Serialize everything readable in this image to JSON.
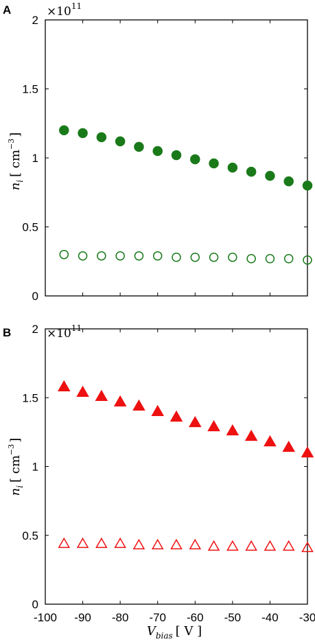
{
  "chart_data": [
    {
      "type": "scatter",
      "panel_label": "A",
      "multiplier_text": "×10",
      "multiplier_exp": "11",
      "ylabel_var": "n",
      "ylabel_sub": "i",
      "ylabel_unit": "[ cm",
      "ylabel_unit_exp": "−3",
      "ylabel_unit_close": "]",
      "xlim": [
        -100,
        -30
      ],
      "ylim": [
        0,
        2
      ],
      "yticks": [
        0,
        0.5,
        1,
        1.5,
        2
      ],
      "ytick_labels": [
        "0",
        "0.5",
        "1",
        "1.5",
        "2"
      ],
      "grid": false,
      "series": [
        {
          "marker": "circle",
          "filled": true,
          "color": "#1a7a1a",
          "x": [
            -95,
            -90,
            -85,
            -80,
            -75,
            -70,
            -65,
            -60,
            -55,
            -50,
            -45,
            -40,
            -35,
            -30
          ],
          "y": [
            1.2,
            1.18,
            1.15,
            1.12,
            1.08,
            1.05,
            1.02,
            0.99,
            0.96,
            0.93,
            0.9,
            0.87,
            0.83,
            0.8
          ]
        },
        {
          "marker": "circle",
          "filled": false,
          "color": "#1a7a1a",
          "x": [
            -95,
            -90,
            -85,
            -80,
            -75,
            -70,
            -65,
            -60,
            -55,
            -50,
            -45,
            -40,
            -35,
            -30
          ],
          "y": [
            0.3,
            0.29,
            0.29,
            0.29,
            0.29,
            0.29,
            0.28,
            0.28,
            0.28,
            0.28,
            0.27,
            0.27,
            0.27,
            0.26
          ]
        }
      ]
    },
    {
      "type": "scatter",
      "panel_label": "B",
      "multiplier_text": "×10",
      "multiplier_exp": "11",
      "ylabel_var": "n",
      "ylabel_sub": "i",
      "ylabel_unit": "[ cm",
      "ylabel_unit_exp": "−3",
      "ylabel_unit_close": "]",
      "xlim": [
        -100,
        -30
      ],
      "ylim": [
        0,
        2
      ],
      "yticks": [
        0,
        0.5,
        1,
        1.5,
        2
      ],
      "ytick_labels": [
        "0",
        "0.5",
        "1",
        "1.5",
        "2"
      ],
      "xticks": [
        -100,
        -90,
        -80,
        -70,
        -60,
        -50,
        -40,
        -30
      ],
      "xtick_labels": [
        "-100",
        "-90",
        "-80",
        "-70",
        "-60",
        "-50",
        "-40",
        "-30"
      ],
      "xlabel_var": "V",
      "xlabel_sub": "bias",
      "xlabel_unit": "[ V ]",
      "grid": false,
      "series": [
        {
          "marker": "triangle",
          "filled": true,
          "color": "#ee1111",
          "x": [
            -95,
            -90,
            -85,
            -80,
            -75,
            -70,
            -65,
            -60,
            -55,
            -50,
            -45,
            -40,
            -35,
            -30
          ],
          "y": [
            1.58,
            1.54,
            1.51,
            1.47,
            1.44,
            1.4,
            1.36,
            1.32,
            1.29,
            1.26,
            1.22,
            1.18,
            1.14,
            1.1
          ]
        },
        {
          "marker": "triangle",
          "filled": false,
          "color": "#ee1111",
          "x": [
            -95,
            -90,
            -85,
            -80,
            -75,
            -70,
            -65,
            -60,
            -55,
            -50,
            -45,
            -40,
            -35,
            -30
          ],
          "y": [
            0.44,
            0.44,
            0.44,
            0.44,
            0.43,
            0.43,
            0.43,
            0.43,
            0.42,
            0.42,
            0.42,
            0.42,
            0.42,
            0.41
          ]
        }
      ]
    }
  ]
}
